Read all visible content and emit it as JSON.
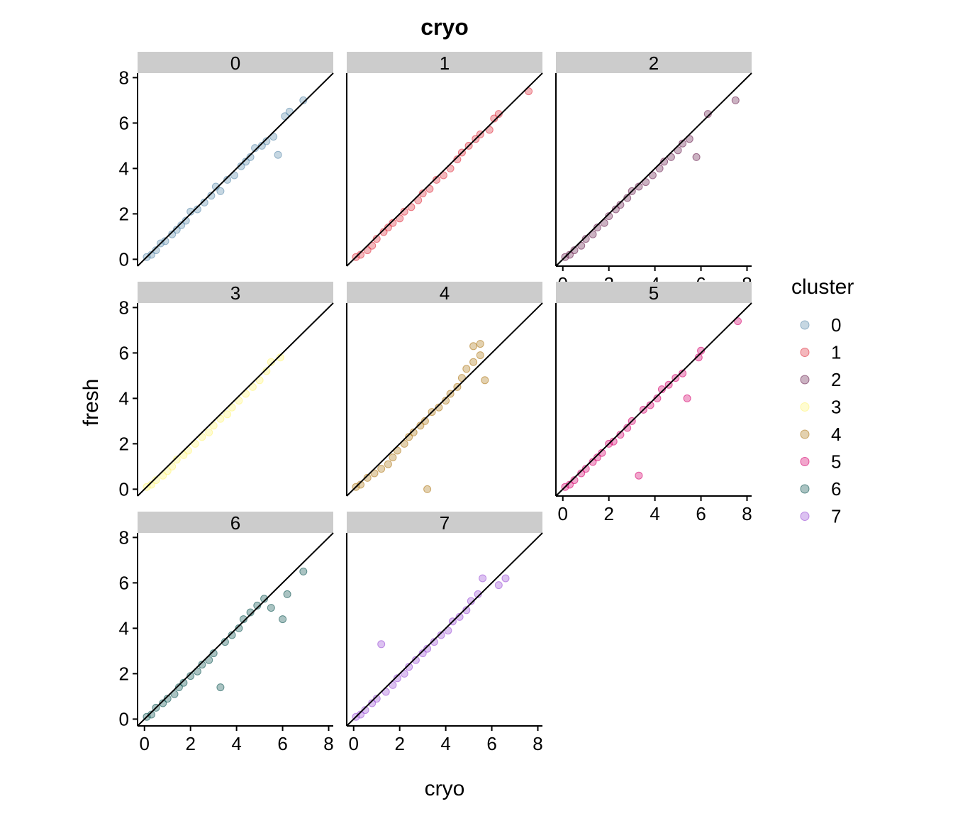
{
  "chart_data": {
    "type": "scatter",
    "title": "cryo",
    "xlabel": "cryo",
    "ylabel": "fresh",
    "xlim": [
      -0.3,
      8.2
    ],
    "ylim": [
      -0.3,
      8.2
    ],
    "x_ticks": [
      "0",
      "2",
      "4",
      "6",
      "8"
    ],
    "y_ticks": [
      "0",
      "2",
      "4",
      "6",
      "8"
    ],
    "reference_line": "y = x",
    "grid": false,
    "legend": {
      "title": "cluster",
      "position": "right"
    },
    "series": [
      {
        "name": "0",
        "color": "#5b8bab",
        "points": [
          [
            0.1,
            0.1
          ],
          [
            0.3,
            0.2
          ],
          [
            0.5,
            0.4
          ],
          [
            0.7,
            0.7
          ],
          [
            0.9,
            0.8
          ],
          [
            1.2,
            1.1
          ],
          [
            1.4,
            1.3
          ],
          [
            1.6,
            1.5
          ],
          [
            1.8,
            1.7
          ],
          [
            2.0,
            2.1
          ],
          [
            2.3,
            2.2
          ],
          [
            2.6,
            2.5
          ],
          [
            2.9,
            2.8
          ],
          [
            3.1,
            3.2
          ],
          [
            3.3,
            3.0
          ],
          [
            3.6,
            3.5
          ],
          [
            3.9,
            3.7
          ],
          [
            4.2,
            4.1
          ],
          [
            4.4,
            4.3
          ],
          [
            4.6,
            4.5
          ],
          [
            4.8,
            4.9
          ],
          [
            5.1,
            5.0
          ],
          [
            5.3,
            5.2
          ],
          [
            5.6,
            5.4
          ],
          [
            5.8,
            4.6
          ],
          [
            6.1,
            6.3
          ],
          [
            6.3,
            6.5
          ],
          [
            6.9,
            7.0
          ]
        ]
      },
      {
        "name": "1",
        "color": "#e0303f",
        "points": [
          [
            0.1,
            0.1
          ],
          [
            0.3,
            0.2
          ],
          [
            0.6,
            0.4
          ],
          [
            0.8,
            0.6
          ],
          [
            1.0,
            0.9
          ],
          [
            1.3,
            1.2
          ],
          [
            1.5,
            1.4
          ],
          [
            1.7,
            1.6
          ],
          [
            2.0,
            1.8
          ],
          [
            2.2,
            2.1
          ],
          [
            2.5,
            2.3
          ],
          [
            2.8,
            2.6
          ],
          [
            3.0,
            2.9
          ],
          [
            3.3,
            3.1
          ],
          [
            3.6,
            3.5
          ],
          [
            3.9,
            3.7
          ],
          [
            4.2,
            4.0
          ],
          [
            4.5,
            4.4
          ],
          [
            4.7,
            4.7
          ],
          [
            5.0,
            5.0
          ],
          [
            5.3,
            5.3
          ],
          [
            5.5,
            5.5
          ],
          [
            5.9,
            5.7
          ],
          [
            6.1,
            6.2
          ],
          [
            6.3,
            6.4
          ],
          [
            7.6,
            7.4
          ]
        ]
      },
      {
        "name": "2",
        "color": "#6b2250",
        "points": [
          [
            0.1,
            0.1
          ],
          [
            0.3,
            0.2
          ],
          [
            0.5,
            0.4
          ],
          [
            0.8,
            0.6
          ],
          [
            1.0,
            0.9
          ],
          [
            1.3,
            1.1
          ],
          [
            1.5,
            1.4
          ],
          [
            1.8,
            1.6
          ],
          [
            2.0,
            1.9
          ],
          [
            2.3,
            2.2
          ],
          [
            2.5,
            2.4
          ],
          [
            2.8,
            2.7
          ],
          [
            3.0,
            3.0
          ],
          [
            3.3,
            3.2
          ],
          [
            3.6,
            3.4
          ],
          [
            3.9,
            3.7
          ],
          [
            4.2,
            4.0
          ],
          [
            4.4,
            4.3
          ],
          [
            4.7,
            4.5
          ],
          [
            5.0,
            4.8
          ],
          [
            5.2,
            5.1
          ],
          [
            5.5,
            5.3
          ],
          [
            5.8,
            4.5
          ],
          [
            6.3,
            6.4
          ],
          [
            7.5,
            7.0
          ]
        ]
      },
      {
        "name": "3",
        "color": "#fff57a",
        "points": [
          [
            0.1,
            0.1
          ],
          [
            0.3,
            0.2
          ],
          [
            0.5,
            0.4
          ],
          [
            0.8,
            0.6
          ],
          [
            1.0,
            0.8
          ],
          [
            1.2,
            1.0
          ],
          [
            1.4,
            1.3
          ],
          [
            1.7,
            1.5
          ],
          [
            1.9,
            1.7
          ],
          [
            2.2,
            2.0
          ],
          [
            2.5,
            2.3
          ],
          [
            2.8,
            2.5
          ],
          [
            3.0,
            2.8
          ],
          [
            3.3,
            3.1
          ],
          [
            3.6,
            3.3
          ],
          [
            3.8,
            3.6
          ],
          [
            4.1,
            3.9
          ],
          [
            4.4,
            4.2
          ],
          [
            4.7,
            4.5
          ],
          [
            5.0,
            4.8
          ],
          [
            5.3,
            5.2
          ],
          [
            5.5,
            5.6
          ],
          [
            5.9,
            5.8
          ]
        ]
      },
      {
        "name": "4",
        "color": "#b07a1a",
        "points": [
          [
            0.1,
            0.1
          ],
          [
            0.3,
            0.2
          ],
          [
            0.6,
            0.5
          ],
          [
            0.9,
            0.7
          ],
          [
            1.2,
            0.9
          ],
          [
            1.5,
            1.1
          ],
          [
            1.7,
            1.4
          ],
          [
            1.9,
            1.7
          ],
          [
            2.2,
            2.0
          ],
          [
            2.4,
            2.3
          ],
          [
            2.6,
            2.5
          ],
          [
            2.9,
            2.8
          ],
          [
            3.1,
            3.0
          ],
          [
            3.2,
            0.0
          ],
          [
            3.4,
            3.4
          ],
          [
            3.7,
            3.6
          ],
          [
            4.0,
            3.9
          ],
          [
            4.2,
            4.2
          ],
          [
            4.5,
            4.5
          ],
          [
            4.7,
            4.9
          ],
          [
            4.9,
            5.3
          ],
          [
            5.2,
            5.6
          ],
          [
            5.5,
            5.9
          ],
          [
            5.7,
            4.8
          ],
          [
            5.2,
            6.3
          ],
          [
            5.5,
            6.4
          ]
        ]
      },
      {
        "name": "5",
        "color": "#d6006d",
        "points": [
          [
            0.1,
            0.1
          ],
          [
            0.3,
            0.2
          ],
          [
            0.5,
            0.4
          ],
          [
            0.8,
            0.7
          ],
          [
            1.0,
            0.9
          ],
          [
            1.3,
            1.2
          ],
          [
            1.5,
            1.4
          ],
          [
            1.7,
            1.6
          ],
          [
            2.0,
            2.0
          ],
          [
            2.2,
            2.1
          ],
          [
            2.5,
            2.4
          ],
          [
            2.8,
            2.7
          ],
          [
            3.0,
            3.0
          ],
          [
            3.3,
            0.6
          ],
          [
            3.5,
            3.5
          ],
          [
            3.8,
            3.7
          ],
          [
            4.1,
            4.0
          ],
          [
            4.3,
            4.4
          ],
          [
            4.6,
            4.6
          ],
          [
            4.9,
            4.9
          ],
          [
            5.2,
            5.1
          ],
          [
            5.4,
            4.0
          ],
          [
            5.9,
            5.8
          ],
          [
            6.0,
            6.1
          ],
          [
            7.6,
            7.4
          ]
        ]
      },
      {
        "name": "6",
        "color": "#0b5450",
        "points": [
          [
            0.1,
            0.1
          ],
          [
            0.3,
            0.2
          ],
          [
            0.5,
            0.5
          ],
          [
            0.8,
            0.7
          ],
          [
            1.0,
            0.9
          ],
          [
            1.3,
            1.1
          ],
          [
            1.5,
            1.4
          ],
          [
            1.7,
            1.6
          ],
          [
            2.0,
            1.9
          ],
          [
            2.3,
            2.1
          ],
          [
            2.5,
            2.4
          ],
          [
            2.8,
            2.6
          ],
          [
            3.0,
            2.9
          ],
          [
            3.3,
            1.4
          ],
          [
            3.5,
            3.4
          ],
          [
            3.8,
            3.7
          ],
          [
            4.1,
            4.0
          ],
          [
            4.3,
            4.4
          ],
          [
            4.6,
            4.7
          ],
          [
            4.9,
            5.0
          ],
          [
            5.2,
            5.3
          ],
          [
            5.5,
            4.9
          ],
          [
            6.0,
            4.4
          ],
          [
            6.2,
            5.5
          ],
          [
            6.9,
            6.5
          ]
        ]
      },
      {
        "name": "7",
        "color": "#9b4fd6",
        "points": [
          [
            0.1,
            0.1
          ],
          [
            0.3,
            0.2
          ],
          [
            0.5,
            0.4
          ],
          [
            0.8,
            0.7
          ],
          [
            1.0,
            0.9
          ],
          [
            1.2,
            3.3
          ],
          [
            1.4,
            1.2
          ],
          [
            1.7,
            1.5
          ],
          [
            1.9,
            1.8
          ],
          [
            2.2,
            2.0
          ],
          [
            2.4,
            2.3
          ],
          [
            2.7,
            2.6
          ],
          [
            3.0,
            2.9
          ],
          [
            3.2,
            3.1
          ],
          [
            3.5,
            3.4
          ],
          [
            3.8,
            3.7
          ],
          [
            4.1,
            3.9
          ],
          [
            4.3,
            4.3
          ],
          [
            4.6,
            4.5
          ],
          [
            4.9,
            4.8
          ],
          [
            5.1,
            5.2
          ],
          [
            5.4,
            5.5
          ],
          [
            5.6,
            6.2
          ],
          [
            6.3,
            5.9
          ],
          [
            6.6,
            6.2
          ]
        ]
      }
    ]
  }
}
